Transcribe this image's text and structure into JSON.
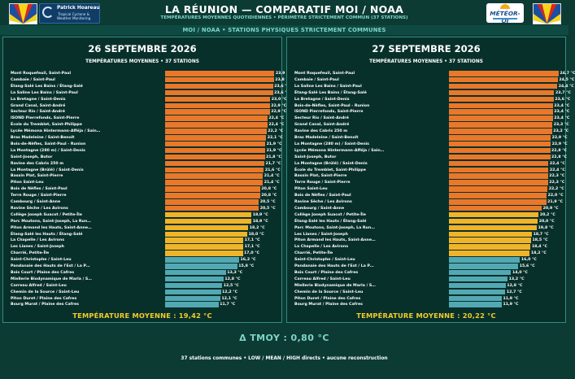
{
  "header": {
    "title": "LA RÉUNION — COMPARATIF MOI / NOAA",
    "subtitle": "TEMPÉRATURES MOYENNES QUOTIDIENNES • PÉRIMÈTRE STRICTEMENT COMMUN (37 STATIONS)",
    "logo_left_line1": "Patrick Hoareau",
    "logo_left_line2": "Tropical Cyclone &",
    "logo_left_line3": "Weather Monitoring",
    "logo_right": "MÉTÉOR-OI",
    "flag_colors": {
      "blue": "#1c4fa0",
      "red": "#e1251b",
      "yellow": "#f7d417",
      "white": "#ffffff"
    }
  },
  "banner": "MOI / NOAA • STATIONS PHYSIQUES STRICTEMENT COMMUNES",
  "colors": {
    "high": "#e9782a",
    "mid": "#f0b429",
    "low": "#53a9b3",
    "mean": "#f1cc2e"
  },
  "chart_data": [
    {
      "type": "bar",
      "title": "26 SEPTEMBRE 2026",
      "subtitle": "TEMPÉRATURES MOYENNES • 37 STATIONS",
      "xlim": [
        0,
        24.2
      ],
      "mean_label": "TEMPÉRATURE MOYENNE : 19,42 °C",
      "categories": [
        "Mont Roquefeuil, Saint-Paul",
        "Cambaie / Saint-Paul",
        "Étang-Salé Les Bains / Étang-Salé",
        "La Saline Les Bains / Saint-Paul",
        "La Bretagne / Saint-Denis",
        "Grand Canal, Saint-André",
        "Secteur Rio / Saint-André",
        "ISOND Pierrefonds, Saint-Pierre",
        "École du Tremblet, Saint-Philippe",
        "Lycée Mémona Hintermann-Afféja / Sain…",
        "Bras Madeleine / Saint-Benoît",
        "Bois-de-Nèfles, Saint-Paul - Runion",
        "La Montagne (280 m) / Saint-Denis",
        "Saint-Joseph, Butor",
        "Ravine des Cabris 250 m",
        "La Montagne (Brûlé) / Saint-Denis",
        "Bassin Plat, Saint-Pierre",
        "Piton Saint-Leu",
        "Bois de Nèfles / Saint-Paul",
        "Terre Rouge / Saint-Pierre",
        "Cambourg / Saint-Anne",
        "Ravine Sèche / Les Avirons",
        "Collège Joseph Suacot / Petite-Île",
        "Parc Moutons, Saint-Joseph, La Run…",
        "Piton Armand les Hauts, Saint-Anne…",
        "Étang-Salé les Hauts / Étang-Salé",
        "La Chapelle / Les Avirons",
        "Les Lianes / Saint-Joseph",
        "Charrié, Petite-Île",
        "Saint-Christophe / Saint-Leu",
        "Pandanaie des Hauts de l'Est / La P…",
        "Bois Court / Plaine des Cafres",
        "Miellerie Biodynamique de Marla / S…",
        "Carreau Alfred / Saint-Leu",
        "Chemin de la Source / Saint-Leu",
        "Piton Duret / Plaine des Cafres",
        "Bourg Murat / Plaine des Cafres"
      ],
      "values": [
        23.9,
        23.8,
        23.6,
        23.6,
        23.0,
        22.9,
        22.9,
        22.4,
        22.4,
        22.2,
        22.1,
        21.9,
        21.9,
        21.8,
        21.7,
        21.6,
        21.4,
        21.4,
        20.8,
        20.8,
        20.5,
        20.5,
        18.9,
        18.9,
        18.2,
        18.0,
        17.1,
        17.1,
        17.0,
        16.2,
        15.8,
        13.3,
        12.8,
        12.5,
        12.2,
        12.1,
        11.7
      ],
      "value_labels": [
        "23,9 °C",
        "23,8 °C",
        "23,6 °C",
        "23,6 °C",
        "23,0 °C",
        "22,9 °C",
        "22,9 °C",
        "22,4 °C",
        "22,4 °C",
        "22,2 °C",
        "22,1 °C",
        "21,9 °C",
        "21,9 °C",
        "21,8 °C",
        "21,7 °C",
        "21,6 °C",
        "21,4 °C",
        "21,4 °C",
        "20,8 °C",
        "20,8 °C",
        "20,5 °C",
        "20,5 °C",
        "18,9 °C",
        "18,9 °C",
        "18,2 °C",
        "18,0 °C",
        "17,1 °C",
        "17,1 °C",
        "17,0 °C",
        "16,2 °C",
        "15,8 °C",
        "13,3 °C",
        "12,8 °C",
        "12,5 °C",
        "12,2 °C",
        "12,1 °C",
        "11,7 °C"
      ]
    },
    {
      "type": "bar",
      "title": "27 SEPTEMBRE 2026",
      "subtitle": "TEMPÉRATURES MOYENNES • 37 STATIONS",
      "xlim": [
        0,
        24.9
      ],
      "mean_label": "TEMPÉRATURE MOYENNE : 20,22 °C",
      "categories": [
        "Mont Roquefeuil, Saint-Paul",
        "Cambaie / Saint-Paul",
        "La Saline Les Bains / Saint-Paul",
        "Étang-Salé Les Bains / Étang-Salé",
        "La Bretagne / Saint-Denis",
        "Bois-de-Nèfles, Saint-Paul - Runion",
        "ISOND Pierrefonds, Saint-Pierre",
        "Secteur Rio / Saint-André",
        "Grand Canal, Saint-André",
        "Ravine des Cabris 250 m",
        "Bras Madeleine / Saint-Benoît",
        "La Montagne (280 m) / Saint-Denis",
        "Lycée Mémona Hintermann-Afféja / Sain…",
        "Saint-Joseph, Butor",
        "La Montagne (Brûlé) / Saint-Denis",
        "École du Tremblet, Saint-Philippe",
        "Bassin Plat, Saint-Pierre",
        "Terre Rouge / Saint-Pierre",
        "Piton Saint-Leu",
        "Bois de Nèfles / Saint-Paul",
        "Ravine Sèche / Les Avirons",
        "Cambourg / Saint-Anne",
        "Collège Joseph Suacot / Petite-Île",
        "Étang-Salé les Hauts / Étang-Salé",
        "Parc Moutons, Saint-Joseph, La Run…",
        "Les Lianes / Saint-Joseph",
        "Piton Armand les Hauts, Saint-Anne…",
        "La Chapelle / Les Avirons",
        "Charrié, Petite-Île",
        "Saint-Christophe / Saint-Leu",
        "Pandanaie des Hauts de l'Est / La P…",
        "Bois Court / Plaine des Cafres",
        "Carreau Alfred / Saint-Leu",
        "Miellerie Biodynamique de Marla / S…",
        "Chemin de la Source / Saint-Leu",
        "Piton Duret / Plaine des Cafres",
        "Bourg Murat / Plaine des Cafres"
      ],
      "values": [
        24.7,
        24.5,
        24.4,
        23.7,
        23.6,
        23.4,
        23.4,
        23.4,
        23.3,
        23.2,
        22.9,
        22.9,
        22.8,
        22.8,
        22.4,
        22.4,
        22.3,
        22.3,
        22.2,
        22.0,
        21.9,
        20.9,
        20.2,
        20.0,
        19.8,
        18.7,
        18.5,
        18.4,
        18.2,
        16.0,
        15.6,
        14.0,
        13.2,
        12.8,
        12.7,
        11.9,
        11.9
      ],
      "value_labels": [
        "24,7 °C",
        "24,5 °C",
        "24,4 °C",
        "23,7 °C",
        "23,6 °C",
        "23,4 °C",
        "23,4 °C",
        "23,4 °C",
        "23,3 °C",
        "23,2 °C",
        "22,9 °C",
        "22,9 °C",
        "22,8 °C",
        "22,8 °C",
        "22,4 °C",
        "22,4 °C",
        "22,3 °C",
        "22,3 °C",
        "22,2 °C",
        "22,0 °C",
        "21,9 °C",
        "20,9 °C",
        "20,2 °C",
        "20,0 °C",
        "19,8 °C",
        "18,7 °C",
        "18,5 °C",
        "18,4 °C",
        "18,2 °C",
        "16,0 °C",
        "15,6 °C",
        "14,0 °C",
        "13,2 °C",
        "12,8 °C",
        "12,7 °C",
        "11,9 °C",
        "11,9 °C"
      ]
    }
  ],
  "delta": "Δ TMOY : 0,80 °C",
  "footer": "37 stations communes • LOW / MEAN / HIGH directs • aucune reconstruction"
}
